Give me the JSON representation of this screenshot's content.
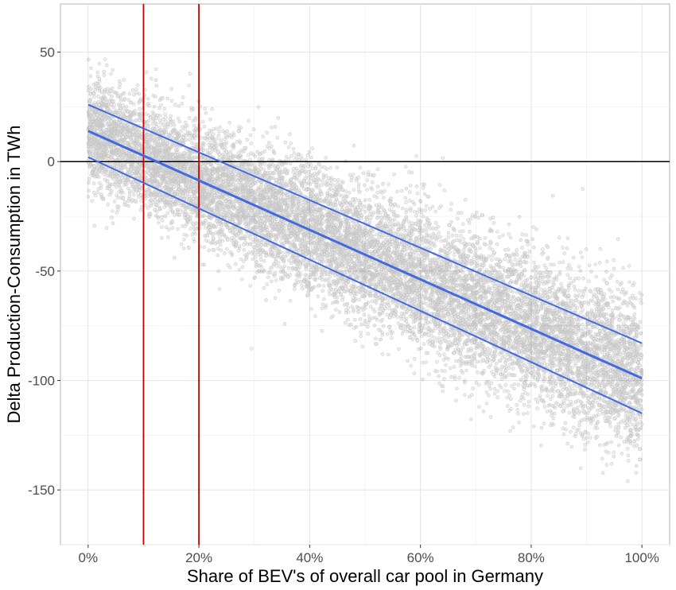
{
  "chart_data": {
    "type": "scatter",
    "title": "",
    "xlabel": "Share of BEV's of overall car pool in Germany",
    "ylabel": "Delta Production-Consumption in TWh",
    "x_tick_labels": [
      "0%",
      "20%",
      "40%",
      "60%",
      "80%",
      "100%"
    ],
    "x_ticks": [
      0,
      0.2,
      0.4,
      0.6,
      0.8,
      1.0
    ],
    "y_tick_labels": [
      "50",
      "0",
      "-50",
      "-100",
      "-150"
    ],
    "y_ticks": [
      50,
      0,
      -50,
      -100,
      -150
    ],
    "xlim": [
      -0.05,
      1.05
    ],
    "ylim": [
      -175,
      72
    ],
    "grid": true,
    "scatter": {
      "approx_point_count": 20000,
      "color": "#000000",
      "x_range": [
        0,
        1
      ],
      "trend": {
        "intercept": 14,
        "slope": -113
      },
      "description_of_spread": "dense band around the trend line, roughly +/-30 TWh at low shares widening to roughly +/-45 TWh at 100%"
    },
    "series": [
      {
        "x": [
          0,
          1
        ],
        "y": [
          26,
          -83
        ],
        "color": "#4169e1"
      },
      {
        "x": [
          0,
          1
        ],
        "y": [
          14,
          -99
        ],
        "color": "#4169e1"
      },
      {
        "x": [
          0,
          1
        ],
        "y": [
          2,
          -115
        ],
        "color": "#4169e1"
      }
    ],
    "hlines": [
      {
        "y": 0,
        "color": "#000000"
      }
    ],
    "vlines": [
      {
        "x": 0.1,
        "color": "#cc0000"
      },
      {
        "x": 0.2,
        "color": "#cc0000"
      }
    ]
  }
}
